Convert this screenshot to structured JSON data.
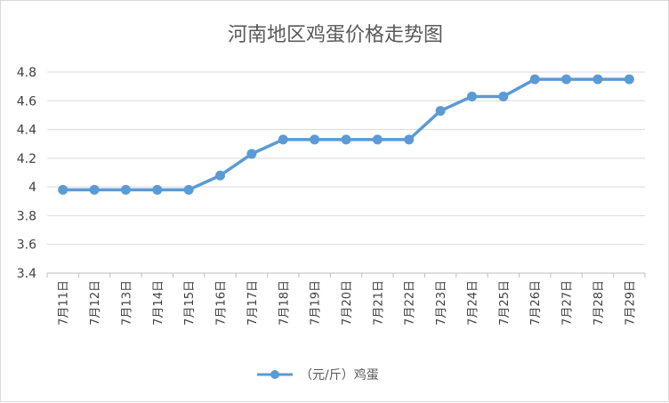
{
  "chart_data": {
    "type": "line",
    "title": "河南地区鸡蛋价格走势图",
    "categories": [
      "7月11日",
      "7月12日",
      "7月13日",
      "7月14日",
      "7月15日",
      "7月16日",
      "7月17日",
      "7月18日",
      "7月19日",
      "7月20日",
      "7月21日",
      "7月22日",
      "7月23日",
      "7月24日",
      "7月25日",
      "7月26日",
      "7月27日",
      "7月28日",
      "7月29日"
    ],
    "series": [
      {
        "name": "（元/斤）鸡蛋",
        "values": [
          3.98,
          3.98,
          3.98,
          3.98,
          3.98,
          4.08,
          4.23,
          4.33,
          4.33,
          4.33,
          4.33,
          4.33,
          4.53,
          4.63,
          4.63,
          4.75,
          4.75,
          4.75,
          4.75
        ],
        "color": "#5b9bd5"
      }
    ],
    "yticks": [
      "3.4",
      "3.6",
      "3.8",
      "4",
      "4.2",
      "4.4",
      "4.6",
      "4.8"
    ],
    "ylim": [
      3.4,
      4.8
    ],
    "grid": true,
    "legend_position": "bottom",
    "xlabel": "",
    "ylabel": ""
  }
}
